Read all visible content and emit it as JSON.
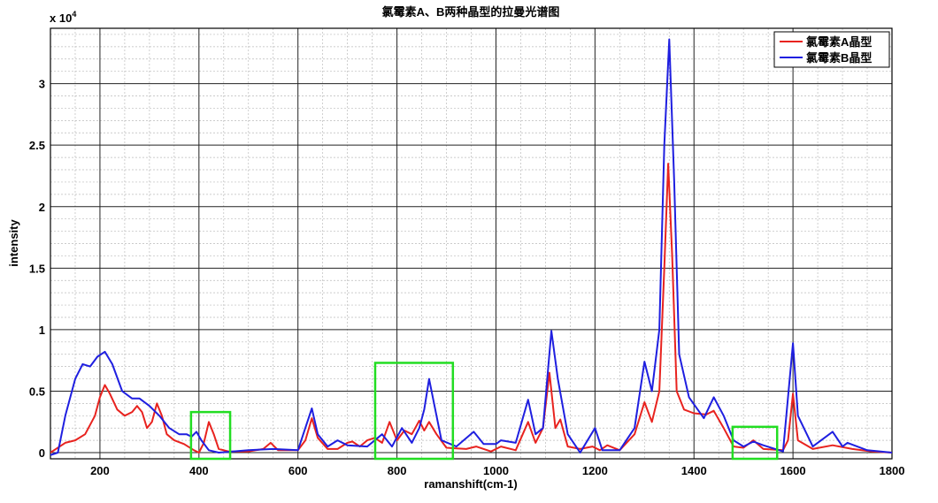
{
  "chart_data": {
    "type": "line",
    "title": "氯霉素A、B两种晶型的拉曼光谱图",
    "xlabel": "ramanshift(cm-1)",
    "ylabel": "intensity",
    "y_multiplier": {
      "base": "x 10",
      "exponent": "4"
    },
    "xlim": [
      100,
      1800
    ],
    "xticks": [
      200,
      400,
      600,
      800,
      1000,
      1200,
      1400,
      1600,
      1800
    ],
    "ylim": [
      -0.05,
      3.45
    ],
    "yticks": [
      0,
      0.5,
      1,
      1.5,
      2,
      2.5,
      3
    ],
    "grid": true,
    "minor_grid": true,
    "legend": "top-right",
    "series": [
      {
        "name": "氯霉素A晶型",
        "color": "#e8231f",
        "x": [
          100,
          130,
          150,
          170,
          190,
          200,
          210,
          220,
          235,
          250,
          265,
          275,
          285,
          295,
          305,
          315,
          325,
          335,
          350,
          370,
          390,
          400,
          410,
          420,
          430,
          440,
          460,
          500,
          530,
          545,
          560,
          600,
          615,
          628,
          640,
          660,
          680,
          700,
          710,
          725,
          740,
          755,
          770,
          785,
          800,
          815,
          830,
          845,
          855,
          865,
          880,
          900,
          940,
          960,
          990,
          1010,
          1040,
          1065,
          1080,
          1095,
          1108,
          1120,
          1130,
          1145,
          1170,
          1195,
          1210,
          1225,
          1250,
          1280,
          1300,
          1315,
          1330,
          1340,
          1348,
          1356,
          1365,
          1380,
          1400,
          1425,
          1440,
          1460,
          1480,
          1500,
          1520,
          1540,
          1580,
          1590,
          1600,
          1610,
          1640,
          1680,
          1720,
          1760,
          1800
        ],
        "values": [
          0,
          0.08,
          0.1,
          0.15,
          0.3,
          0.45,
          0.55,
          0.48,
          0.35,
          0.3,
          0.33,
          0.38,
          0.33,
          0.2,
          0.25,
          0.4,
          0.3,
          0.15,
          0.1,
          0.07,
          0.02,
          0,
          0.08,
          0.25,
          0.15,
          0.03,
          0.01,
          0.01,
          0.03,
          0.08,
          0.02,
          0.02,
          0.1,
          0.28,
          0.12,
          0.03,
          0.03,
          0.08,
          0.09,
          0.05,
          0.1,
          0.12,
          0.08,
          0.25,
          0.1,
          0.18,
          0.15,
          0.26,
          0.18,
          0.25,
          0.15,
          0.04,
          0.03,
          0.05,
          0.01,
          0.05,
          0.02,
          0.25,
          0.08,
          0.2,
          0.65,
          0.2,
          0.27,
          0.05,
          0.03,
          0.05,
          0.02,
          0.06,
          0.02,
          0.15,
          0.41,
          0.25,
          0.5,
          1.5,
          2.35,
          1.6,
          0.5,
          0.35,
          0.32,
          0.31,
          0.34,
          0.2,
          0.05,
          0.04,
          0.1,
          0.03,
          0.02,
          0.1,
          0.48,
          0.1,
          0.03,
          0.06,
          0.03,
          0.01,
          0
        ]
      },
      {
        "name": "氯霉素B晶型",
        "color": "#1f1fe0",
        "x": [
          100,
          115,
          130,
          150,
          165,
          180,
          195,
          210,
          225,
          245,
          265,
          280,
          300,
          320,
          340,
          360,
          375,
          385,
          395,
          405,
          420,
          440,
          500,
          550,
          600,
          628,
          640,
          660,
          680,
          700,
          740,
          770,
          790,
          810,
          830,
          845,
          855,
          865,
          875,
          890,
          920,
          955,
          975,
          1000,
          1010,
          1040,
          1065,
          1080,
          1095,
          1112,
          1125,
          1145,
          1170,
          1200,
          1215,
          1250,
          1280,
          1300,
          1315,
          1330,
          1340,
          1350,
          1360,
          1370,
          1390,
          1420,
          1440,
          1460,
          1480,
          1500,
          1520,
          1540,
          1580,
          1600,
          1610,
          1640,
          1680,
          1700,
          1710,
          1750,
          1800
        ],
        "values": [
          -0.02,
          0,
          0.3,
          0.6,
          0.72,
          0.7,
          0.78,
          0.82,
          0.72,
          0.5,
          0.44,
          0.44,
          0.38,
          0.3,
          0.2,
          0.15,
          0.15,
          0.13,
          0.17,
          0.1,
          0.02,
          0,
          0.02,
          0.03,
          0.02,
          0.36,
          0.15,
          0.05,
          0.1,
          0.06,
          0.05,
          0.15,
          0.05,
          0.2,
          0.08,
          0.2,
          0.35,
          0.6,
          0.4,
          0.1,
          0.05,
          0.17,
          0.07,
          0.07,
          0.1,
          0.08,
          0.43,
          0.15,
          0.2,
          0.99,
          0.6,
          0.15,
          0,
          0.2,
          0.02,
          0.02,
          0.2,
          0.74,
          0.5,
          1,
          2.5,
          3.36,
          2.2,
          0.8,
          0.45,
          0.28,
          0.45,
          0.3,
          0.1,
          0.05,
          0.09,
          0.06,
          0.01,
          0.89,
          0.3,
          0.05,
          0.17,
          0.05,
          0.08,
          0.02,
          0
        ]
      }
    ],
    "highlight_color": "#22dd22",
    "highlight_boxes": [
      {
        "x": [
          384,
          463
        ],
        "y": [
          -0.05,
          0.33
        ]
      },
      {
        "x": [
          756,
          913
        ],
        "y": [
          -0.05,
          0.73
        ]
      },
      {
        "x": [
          1478,
          1568
        ],
        "y": [
          -0.05,
          0.21
        ]
      }
    ]
  }
}
